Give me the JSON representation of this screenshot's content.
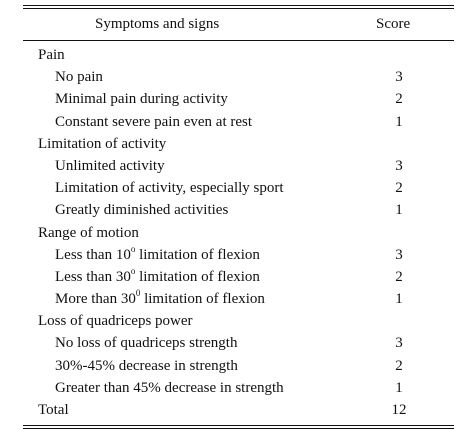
{
  "table": {
    "headers": {
      "symptoms": "Symptoms and signs",
      "score": "Score"
    },
    "rows": [
      {
        "type": "category",
        "label": "Pain"
      },
      {
        "type": "item",
        "label": "No pain",
        "score": "3"
      },
      {
        "type": "item",
        "label": "Minimal pain during activity",
        "score": "2"
      },
      {
        "type": "item",
        "label": "Constant severe pain even at rest",
        "score": "1"
      },
      {
        "type": "category",
        "label": "Limitation of activity"
      },
      {
        "type": "item",
        "label": "Unlimited activity",
        "score": "3"
      },
      {
        "type": "item",
        "label": "Limitation of activity, especially sport",
        "score": "2"
      },
      {
        "type": "item",
        "label": "Greatly diminished activities",
        "score": "1"
      },
      {
        "type": "category",
        "label": "Range of motion"
      },
      {
        "type": "item",
        "label_pre": "Less than 10",
        "label_sup": "o",
        "label_post": " limitation of flexion",
        "score": "3"
      },
      {
        "type": "item",
        "label_pre": "Less than 30",
        "label_sup": "o",
        "label_post": " limitation of flexion",
        "score": "2"
      },
      {
        "type": "item",
        "label_pre": "More than 30",
        "label_sup": "0",
        "label_post": " limitation of flexion",
        "score": "1"
      },
      {
        "type": "category",
        "label": "Loss of quadriceps power"
      },
      {
        "type": "item",
        "label": "No loss of quadriceps strength",
        "score": "3"
      },
      {
        "type": "item",
        "label": "30%-45% decrease in strength",
        "score": "2"
      },
      {
        "type": "item",
        "label": "Greater than 45% decrease in strength",
        "score": "1"
      },
      {
        "type": "total",
        "label": "Total",
        "score": "12"
      }
    ]
  }
}
